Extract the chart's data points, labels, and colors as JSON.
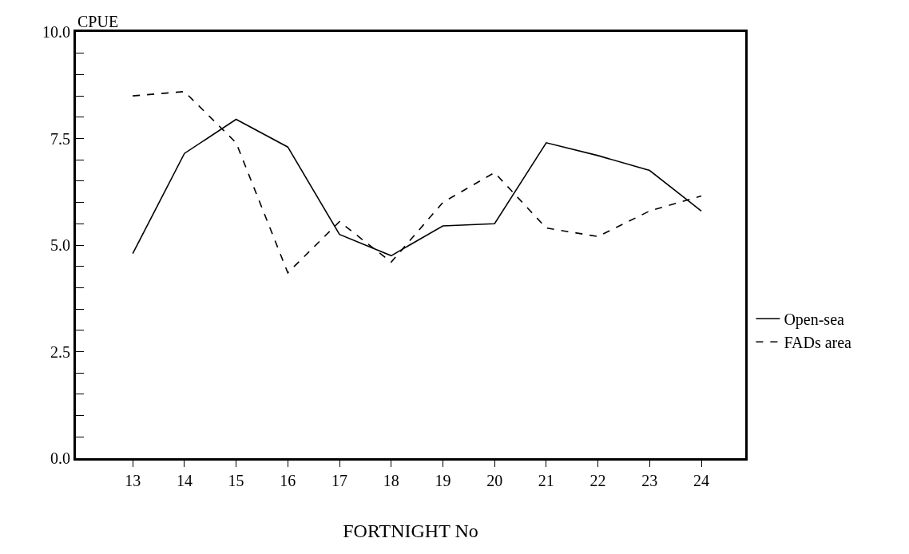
{
  "chart_data": {
    "type": "line",
    "ylabel": "CPUE",
    "xlabel": "FORTNIGHT No",
    "x": [
      13,
      14,
      15,
      16,
      17,
      18,
      19,
      20,
      21,
      22,
      23,
      24
    ],
    "series": [
      {
        "name": "Open-sea",
        "color": "#000000",
        "line_style": "solid",
        "values": [
          4.8,
          7.15,
          7.95,
          7.3,
          5.25,
          4.75,
          5.45,
          5.5,
          7.4,
          7.1,
          6.75,
          5.8
        ]
      },
      {
        "name": "FADs area",
        "color": "#000000",
        "line_style": "dashed",
        "values": [
          8.5,
          8.6,
          7.4,
          4.35,
          5.55,
          4.6,
          6.0,
          6.7,
          5.4,
          5.2,
          5.8,
          6.15
        ]
      }
    ],
    "xlim": [
      11.9,
      24.85
    ],
    "xticks": [
      13,
      14,
      15,
      16,
      17,
      18,
      19,
      20,
      21,
      22,
      23,
      24
    ],
    "ylim": [
      0,
      10
    ],
    "yticks": [
      {
        "value": 0,
        "label": "0.0"
      },
      {
        "value": 0.5,
        "label": null
      },
      {
        "value": 1,
        "label": null
      },
      {
        "value": 1.5,
        "label": null
      },
      {
        "value": 2,
        "label": null
      },
      {
        "value": 2.5,
        "label": "2.5"
      },
      {
        "value": 3,
        "label": null
      },
      {
        "value": 3.5,
        "label": null
      },
      {
        "value": 4,
        "label": null
      },
      {
        "value": 4.5,
        "label": null
      },
      {
        "value": 5,
        "label": "5.0"
      },
      {
        "value": 5.5,
        "label": null
      },
      {
        "value": 6,
        "label": null
      },
      {
        "value": 6.5,
        "label": null
      },
      {
        "value": 7,
        "label": null
      },
      {
        "value": 7.5,
        "label": "7.5"
      },
      {
        "value": 8,
        "label": null
      },
      {
        "value": 8.5,
        "label": null
      },
      {
        "value": 9,
        "label": null
      },
      {
        "value": 9.5,
        "label": null
      },
      {
        "value": 10,
        "label": "10.0"
      }
    ],
    "legend": "right",
    "marker": "none"
  }
}
